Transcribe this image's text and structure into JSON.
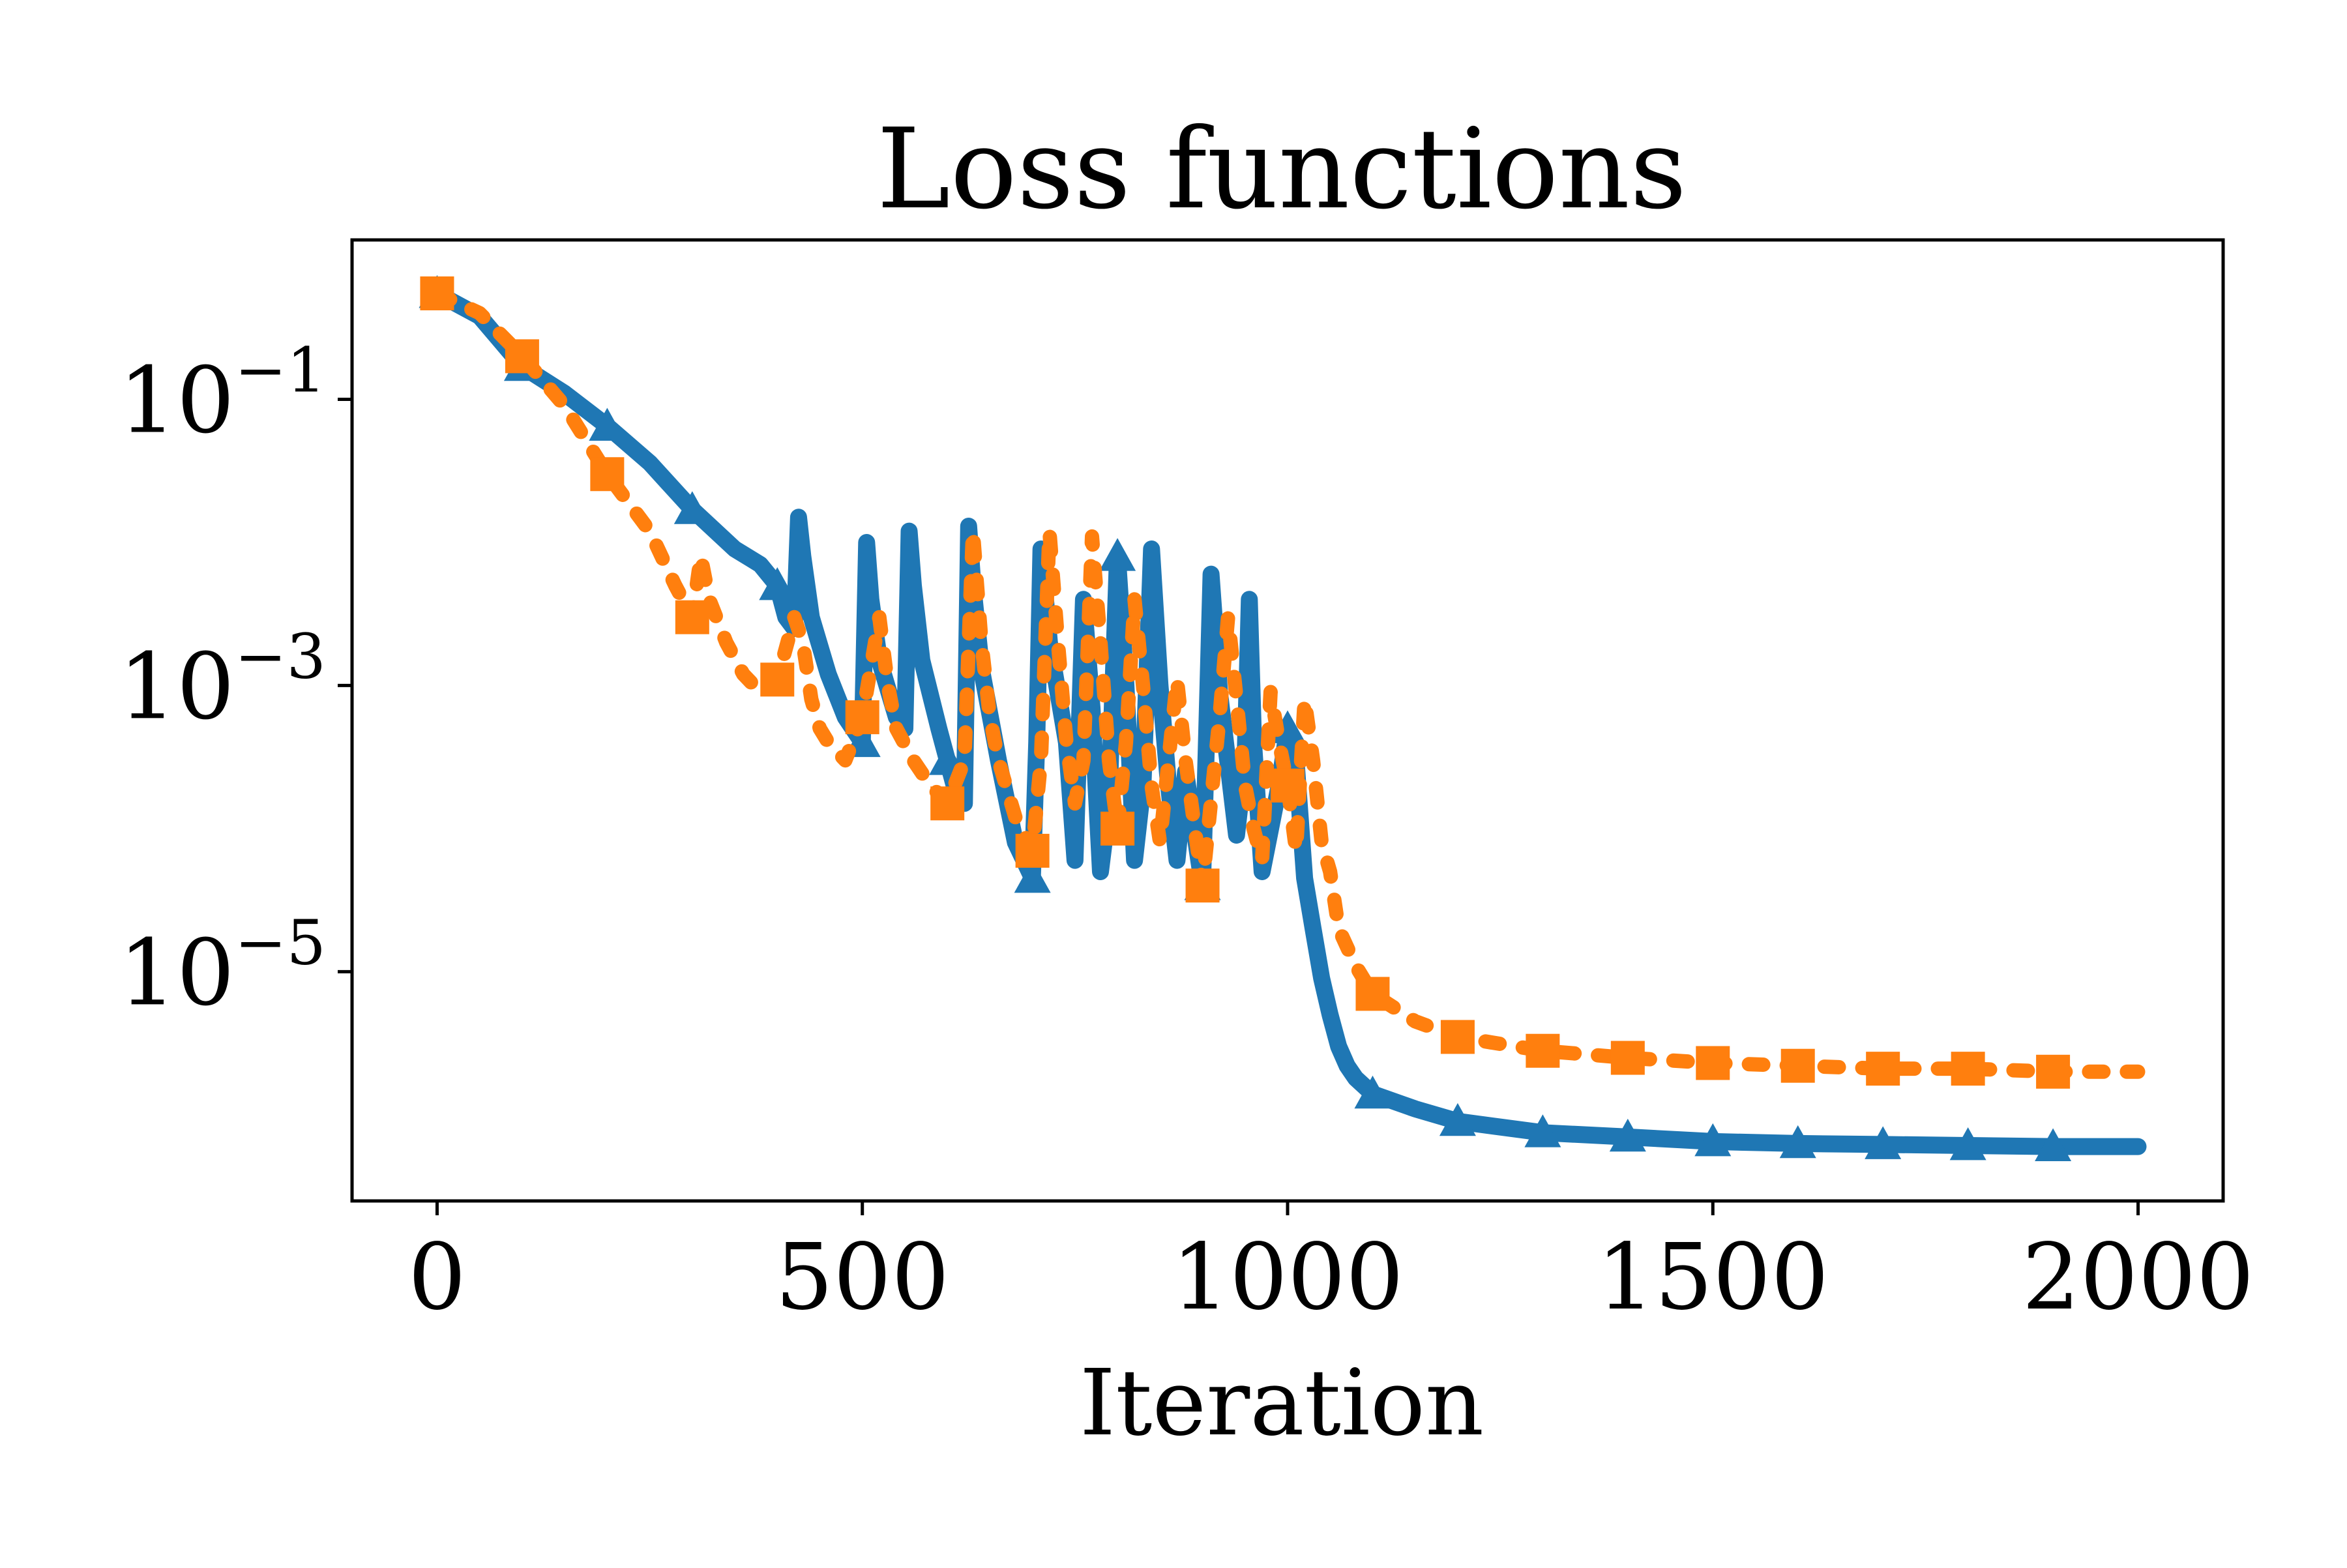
{
  "chart_data": {
    "type": "line",
    "title": "Loss functions",
    "xlabel": "Iteration",
    "ylabel": "",
    "x_ticks": [
      "0",
      "500",
      "1000",
      "1500",
      "2000"
    ],
    "y_ticks": [
      {
        "base": "10",
        "exp": "−1",
        "value": 0.1
      },
      {
        "base": "10",
        "exp": "−3",
        "value": 0.001
      },
      {
        "base": "10",
        "exp": "−5",
        "value": 1e-05
      }
    ],
    "xlim": [
      -100,
      2100
    ],
    "ylim": [
      2.5e-07,
      1.3
    ],
    "yscale": "log",
    "grid": false,
    "legend": "none",
    "series": [
      {
        "style": "solid",
        "marker": "triangle",
        "color": "#1f77b4",
        "x": [
          0,
          50,
          100,
          150,
          200,
          250,
          300,
          350,
          380,
          400,
          410,
          420,
          425,
          430,
          440,
          460,
          480,
          500,
          505,
          510,
          520,
          540,
          550,
          555,
          560,
          570,
          590,
          610,
          620,
          625,
          630,
          640,
          660,
          680,
          700,
          705,
          710,
          720,
          740,
          750,
          760,
          770,
          780,
          790,
          800,
          810,
          820,
          830,
          840,
          850,
          860,
          870,
          880,
          900,
          905,
          910,
          920,
          940,
          950,
          955,
          960,
          970,
          990,
          1000,
          1010,
          1020,
          1030,
          1040,
          1050,
          1060,
          1070,
          1080,
          1100,
          1150,
          1200,
          1300,
          1400,
          1500,
          1600,
          1700,
          1800,
          1900,
          2000
        ],
        "y": [
          0.55,
          0.38,
          0.17,
          0.11,
          0.065,
          0.036,
          0.017,
          0.009,
          0.007,
          0.005,
          0.003,
          0.0025,
          0.015,
          0.008,
          0.003,
          0.0012,
          0.0006,
          0.0004,
          0.01,
          0.004,
          0.0015,
          0.0006,
          0.0005,
          0.012,
          0.005,
          0.0015,
          0.0005,
          0.00018,
          0.00015,
          0.013,
          0.005,
          0.0013,
          0.0003,
          8e-05,
          4.5e-05,
          0.0004,
          0.009,
          0.002,
          0.0004,
          6e-05,
          0.004,
          0.0007,
          5e-05,
          0.00015,
          0.008,
          0.001,
          6e-05,
          0.0002,
          0.009,
          0.001,
          0.0002,
          6e-05,
          0.00025,
          4e-05,
          0.0005,
          0.006,
          0.0009,
          9e-05,
          0.0003,
          0.004,
          0.0004,
          5e-05,
          0.0002,
          0.0005,
          0.0003,
          4.5e-05,
          2e-05,
          9e-06,
          5e-06,
          3e-06,
          2.2e-06,
          1.8e-06,
          1.4e-06,
          1.1e-06,
          9e-07,
          7.5e-07,
          7e-07,
          6.5e-07,
          6.3e-07,
          6.2e-07,
          6.1e-07,
          6e-07,
          6e-07
        ]
      },
      {
        "style": "dotted",
        "marker": "square",
        "color": "#ff7f0e",
        "x": [
          0,
          50,
          100,
          150,
          200,
          250,
          280,
          300,
          310,
          320,
          340,
          360,
          380,
          400,
          420,
          430,
          440,
          450,
          460,
          480,
          500,
          520,
          530,
          540,
          560,
          580,
          600,
          620,
          630,
          640,
          650,
          660,
          680,
          700,
          710,
          720,
          730,
          740,
          750,
          760,
          770,
          780,
          790,
          800,
          810,
          820,
          830,
          840,
          850,
          860,
          870,
          880,
          900,
          920,
          930,
          940,
          950,
          960,
          970,
          980,
          990,
          1000,
          1010,
          1020,
          1030,
          1040,
          1050,
          1060,
          1080,
          1100,
          1150,
          1200,
          1300,
          1400,
          1500,
          1600,
          1700,
          1800,
          1900,
          2000
        ],
        "y": [
          0.55,
          0.4,
          0.2,
          0.09,
          0.03,
          0.012,
          0.005,
          0.003,
          0.008,
          0.004,
          0.002,
          0.0012,
          0.0009,
          0.0011,
          0.003,
          0.002,
          0.0008,
          0.0005,
          0.0004,
          0.0003,
          0.0006,
          0.003,
          0.001,
          0.0005,
          0.0003,
          0.0002,
          0.00015,
          0.0003,
          0.012,
          0.002,
          0.0006,
          0.0003,
          0.00012,
          7e-05,
          0.0003,
          0.012,
          0.002,
          0.0004,
          0.00015,
          0.0003,
          0.011,
          0.002,
          0.0003,
          0.0001,
          0.0004,
          0.004,
          0.001,
          0.0002,
          8e-05,
          0.0003,
          0.0011,
          0.0003,
          4e-05,
          0.0006,
          0.003,
          0.0008,
          0.0002,
          0.0001,
          6e-05,
          0.0009,
          0.0004,
          0.0002,
          7e-05,
          0.0008,
          0.0003,
          8e-05,
          5e-05,
          2e-05,
          1.1e-05,
          7e-06,
          4.5e-06,
          3.5e-06,
          2.8e-06,
          2.5e-06,
          2.3e-06,
          2.2e-06,
          2.1e-06,
          2.1e-06,
          2e-06,
          2e-06
        ]
      }
    ]
  }
}
